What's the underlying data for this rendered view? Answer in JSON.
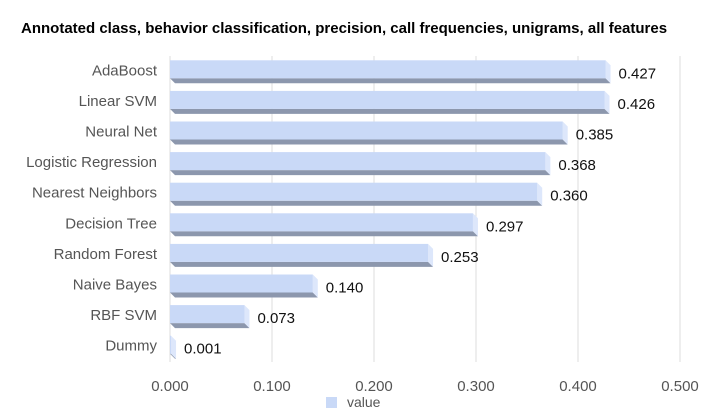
{
  "chart_data": {
    "type": "bar",
    "orientation": "horizontal",
    "title": "Annotated class, behavior classification, precision, call frequencies, unigrams, all features",
    "categories": [
      "AdaBoost",
      "Linear SVM",
      "Neural Net",
      "Logistic Regression",
      "Nearest Neighbors",
      "Decision Tree",
      "Random Forest",
      "Naive Bayes",
      "RBF SVM",
      "Dummy"
    ],
    "series": [
      {
        "name": "value",
        "values": [
          0.427,
          0.426,
          0.385,
          0.368,
          0.36,
          0.297,
          0.253,
          0.14,
          0.073,
          0.001
        ],
        "value_labels": [
          "0.427",
          "0.426",
          "0.385",
          "0.368",
          "0.360",
          "0.297",
          "0.253",
          "0.140",
          "0.073",
          "0.001"
        ]
      }
    ],
    "xlim": [
      0,
      0.5
    ],
    "xticks": [
      "0.000",
      "0.100",
      "0.200",
      "0.300",
      "0.400",
      "0.500"
    ],
    "grid": "vertical",
    "legend_position": "bottom",
    "colors": {
      "bar_face": "#c9d9f7",
      "bar_top": "#dde7fb",
      "bar_shadow": "#8c97ad",
      "grid": "#dddddd"
    }
  }
}
